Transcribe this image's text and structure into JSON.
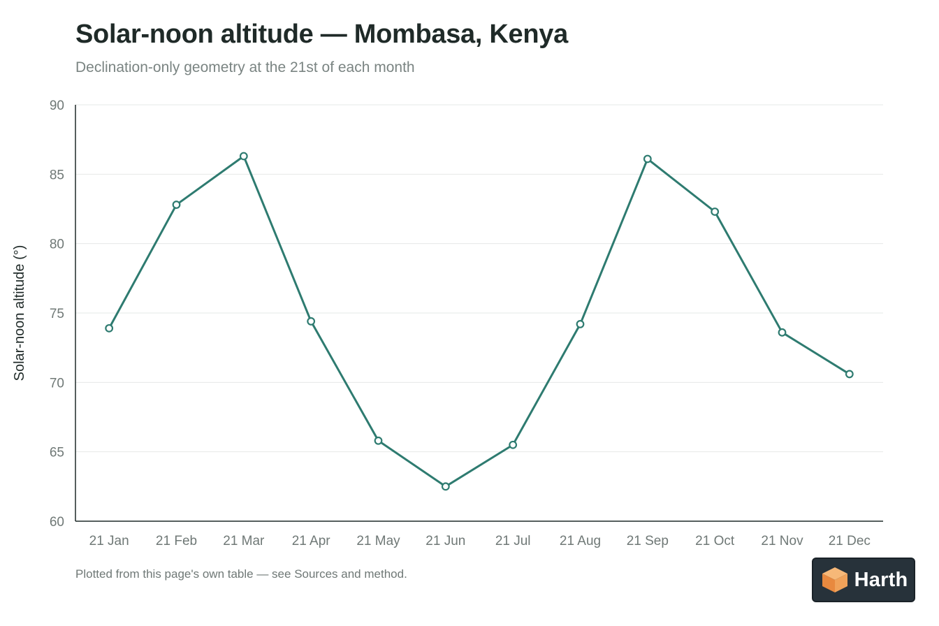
{
  "header": {
    "title": "Solar-noon altitude — Mombasa, Kenya",
    "subtitle": "Declination-only geometry at the 21st of each month"
  },
  "footer": {
    "note": "Plotted from this page's own table — see Sources and method."
  },
  "logo": {
    "text": "Harth",
    "icon": "orange-cube-icon"
  },
  "colors": {
    "line": "#2e7b70",
    "grid": "#e6e8e7",
    "axis": "#1f2a28",
    "tick_text": "#6f7876",
    "logo_bg": "#27323a",
    "logo_accent": "#f0a25a"
  },
  "chart_data": {
    "type": "line",
    "title": "Solar-noon altitude — Mombasa, Kenya",
    "subtitle": "Declination-only geometry at the 21st of each month",
    "xlabel": "",
    "ylabel": "Solar-noon altitude (°)",
    "categories": [
      "21 Jan",
      "21 Feb",
      "21 Mar",
      "21 Apr",
      "21 May",
      "21 Jun",
      "21 Jul",
      "21 Aug",
      "21 Sep",
      "21 Oct",
      "21 Nov",
      "21 Dec"
    ],
    "values": [
      73.9,
      82.8,
      86.3,
      74.4,
      65.8,
      62.5,
      65.5,
      74.2,
      86.1,
      82.3,
      73.6,
      70.6
    ],
    "ylim": [
      60,
      90
    ],
    "yticks": [
      60,
      65,
      70,
      75,
      80,
      85,
      90
    ],
    "grid": true,
    "legend": "none"
  }
}
